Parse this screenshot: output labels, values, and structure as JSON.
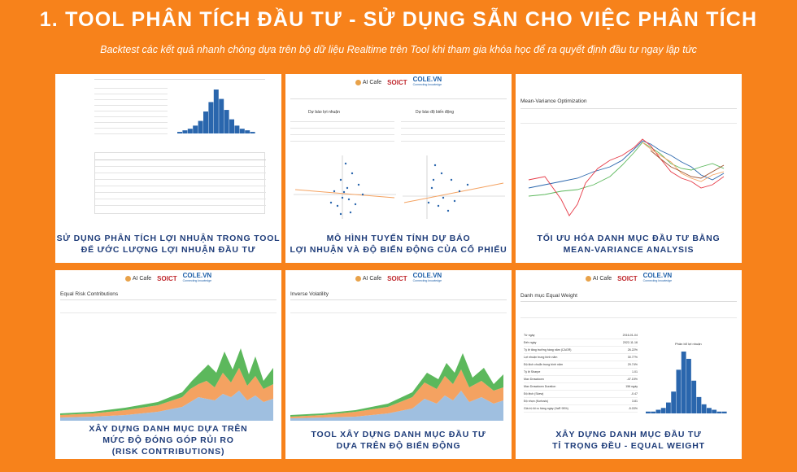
{
  "header": {
    "title": "1. TOOL PHÂN TÍCH ĐẦU TƯ - SỬ DỤNG SẴN CHO VIỆC PHÂN TÍCH",
    "subtitle": "Backtest các kết quả nhanh chóng dựa trên bộ dữ liệu Realtime trên Tool khi tham gia khóa học để ra quyết định đầu tư ngay lập tức"
  },
  "logos": {
    "aicafe": "AI Cafe",
    "soict": "SOICT",
    "cole": "COLE.VN",
    "cole_tag": "Connecting knowledge"
  },
  "cards": [
    {
      "lines": [
        "SỬ DỤNG PHÂN TÍCH LỢI NHUẬN TRONG TOOL",
        "ĐỂ ƯỚC LƯỢNG LỢI NHUẬN ĐẦU TƯ"
      ]
    },
    {
      "lines": [
        "MÔ HÌNH TUYẾN TÍNH DỰ BÁO",
        "LỢI NHUẬN VÀ ĐỘ BIẾN ĐỘNG CỦA CỔ PHIẾU"
      ],
      "panel_left": "Dự báo lợi nhuận",
      "panel_right": "Dự báo độ biến động"
    },
    {
      "lines": [
        "TỐI ƯU HÓA DANH MỤC ĐẦU TƯ BẰNG",
        "MEAN-VARIANCE ANALYSIS"
      ],
      "shot_title": "Mean-Variance Optimization"
    },
    {
      "lines": [
        "XÂY DỰNG DANH MỤC DỰA TRÊN",
        "MỨC ĐỘ ĐÓNG GÓP RỦI RO",
        "(RISK CONTRIBUTIONS)"
      ],
      "shot_title": "Equal Risk Contributions"
    },
    {
      "lines": [
        "TOOL XÂY DỰNG DANH MỤC ĐẦU TƯ",
        "DỰA TRÊN ĐỘ BIẾN ĐỘNG"
      ],
      "shot_title": "Inverse Volatility"
    },
    {
      "lines": [
        "XÂY DỰNG DANH MỤC ĐẦU TƯ",
        "TỈ TRỌNG ĐỀU - EQUAL WEIGHT"
      ],
      "shot_title": "Danh mục Equal Weight",
      "hist_title": "Phân bổ lợi nhuận",
      "stats": [
        {
          "k": "Từ ngày",
          "v": "2016-01-04"
        },
        {
          "k": "Đến ngày",
          "v": "2022-11-16"
        },
        {
          "k": "Tỷ lệ tăng trưởng hàng năm (CAGR)",
          "v": "26.22%"
        },
        {
          "k": "Lợi nhuận trung bình năm",
          "v": "30.77%"
        },
        {
          "k": "Độ lệch chuẩn trung bình năm",
          "v": "29.74%"
        },
        {
          "k": "Tỷ lệ Sharpe",
          "v": "1.01"
        },
        {
          "k": "Max Drawdown",
          "v": "-47.15%"
        },
        {
          "k": "Max Drawdown Duration",
          "v": "156 ngày"
        },
        {
          "k": "Độ lệch (Skew)",
          "v": "-0.47"
        },
        {
          "k": "Độ nhọn (Kurtosis)",
          "v": "3.81"
        },
        {
          "k": "Giá trị rủi ro hàng ngày (VaR 95%)",
          "v": "-5.03%"
        }
      ]
    }
  ],
  "hist1": [
    1,
    2,
    3,
    5,
    8,
    14,
    20,
    28,
    22,
    15,
    9,
    5,
    3,
    2,
    1
  ],
  "hist6": [
    1,
    1,
    2,
    3,
    6,
    12,
    24,
    34,
    30,
    18,
    9,
    5,
    3,
    2,
    1,
    1
  ],
  "colors": {
    "orange": "#f7821b",
    "navy": "#1f3d7a",
    "blue": "#2a66ad",
    "green": "#5cb85c",
    "peach": "#f4a261",
    "lightblue": "#9fbfe0"
  }
}
